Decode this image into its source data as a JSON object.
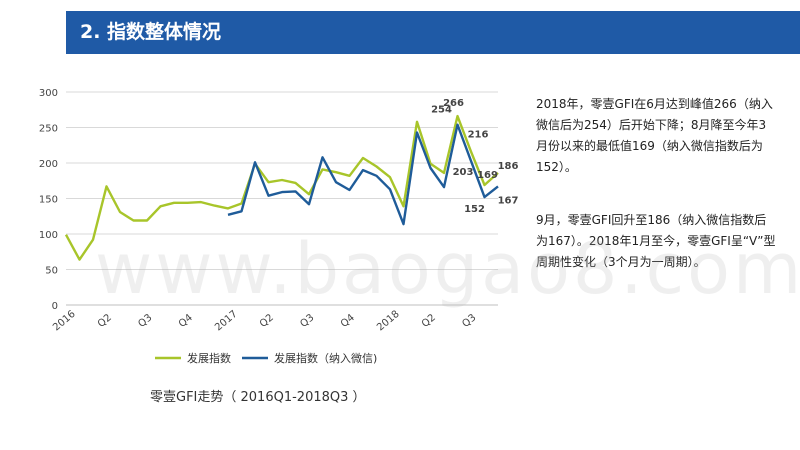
{
  "header": {
    "title": "2. 指数整体情况"
  },
  "commentary": {
    "para1": "2018年，零壹GFI在6月达到峰值266（纳入微信后为254）后开始下降；8月降至今年3月份以来的最低值169（纳入微信指数后为152）。",
    "para2": "9月，零壹GFI回升至186（纳入微信指数后为167）。2018年1月至今，零壹GFI呈“V”型周期性变化（3个月为一周期）。"
  },
  "caption": "零壹GFI走势（ 2016Q1-2018Q3 ）",
  "watermark": "www.baogao8.com",
  "colors": {
    "header": "#1f5aa6",
    "series1": "#a8c52a",
    "series2": "#1f5c99"
  },
  "chart_data": {
    "type": "line",
    "ylim": [
      0,
      300
    ],
    "yticks": [
      0,
      50,
      100,
      150,
      200,
      250,
      300
    ],
    "grid": true,
    "legend_position": "bottom",
    "x_tick_labels": [
      "2016",
      "Q2",
      "Q3",
      "Q4",
      "2017",
      "Q2",
      "Q3",
      "Q4",
      "2018",
      "Q2",
      "Q3"
    ],
    "months": 33,
    "series": [
      {
        "name": "发展指数",
        "x": [
          0,
          1,
          2,
          3,
          4,
          5,
          6,
          7,
          8,
          9,
          10,
          11,
          12,
          13,
          14,
          15,
          16,
          17,
          18,
          19,
          20,
          21,
          22,
          23,
          24,
          25,
          26,
          27,
          28,
          29,
          30,
          31,
          32
        ],
        "values": [
          99,
          64,
          92,
          167,
          131,
          119,
          119,
          139,
          144,
          144,
          145,
          140,
          136,
          143,
          199,
          173,
          176,
          172,
          156,
          191,
          187,
          182,
          207,
          195,
          180,
          139,
          258,
          199,
          186,
          266,
          216,
          169,
          186
        ]
      },
      {
        "name": "发展指数（纳入微信)",
        "x": [
          12,
          13,
          14,
          15,
          16,
          17,
          18,
          19,
          20,
          21,
          22,
          23,
          24,
          25,
          26,
          27,
          28,
          29,
          30,
          31,
          32
        ],
        "values": [
          127,
          132,
          201,
          154,
          159,
          160,
          142,
          208,
          173,
          162,
          190,
          182,
          163,
          114,
          243,
          193,
          166,
          254,
          203,
          152,
          167
        ]
      }
    ],
    "data_labels": [
      {
        "series": 0,
        "index": 29,
        "text": "266"
      },
      {
        "series": 0,
        "index": 30,
        "text": "216"
      },
      {
        "series": 0,
        "index": 31,
        "text": "169"
      },
      {
        "series": 0,
        "index": 32,
        "text": "186"
      },
      {
        "series": 1,
        "index": 29,
        "text": "254"
      },
      {
        "series": 1,
        "index": 30,
        "text": "203"
      },
      {
        "series": 1,
        "index": 31,
        "text": "152"
      },
      {
        "series": 1,
        "index": 32,
        "text": "167"
      }
    ]
  }
}
